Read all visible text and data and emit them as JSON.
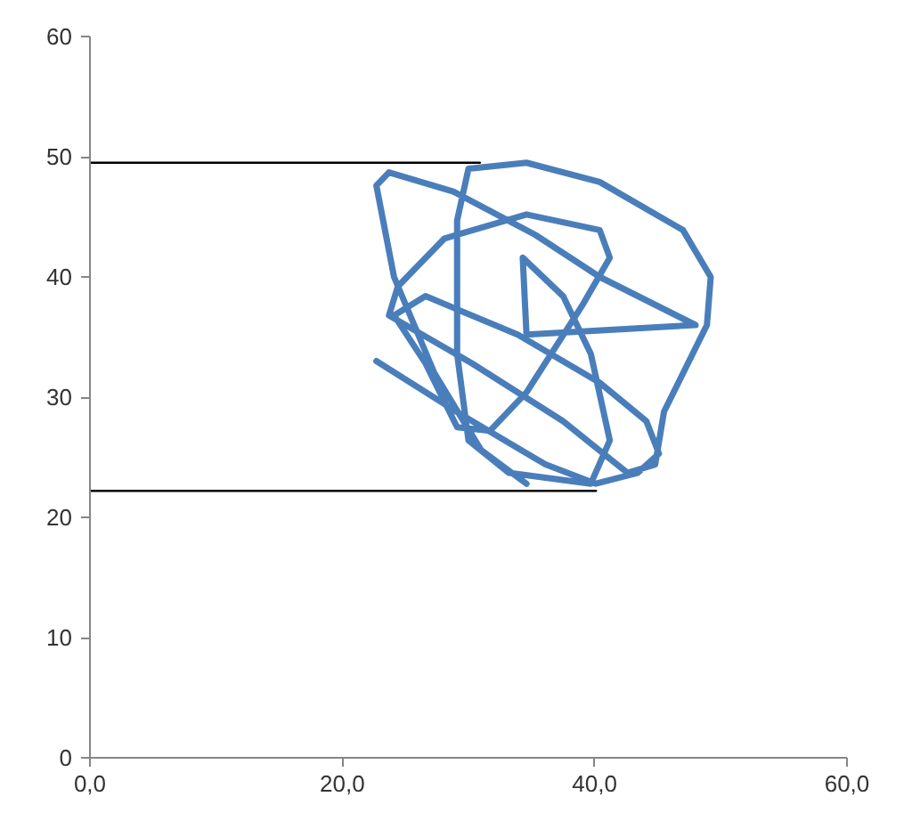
{
  "chart_data": {
    "type": "line",
    "line_style": "solid",
    "grid": false,
    "xlim": [
      0,
      60
    ],
    "ylim": [
      0,
      60
    ],
    "xticks": [
      {
        "value": 0,
        "label": "0,0"
      },
      {
        "value": 20,
        "label": "20,0"
      },
      {
        "value": 40,
        "label": "40,0"
      },
      {
        "value": 60,
        "label": "60,0"
      }
    ],
    "yticks": [
      0,
      10,
      20,
      30,
      40,
      50,
      60
    ],
    "series": [
      {
        "color": "#4a7ebb",
        "x": [
          22.7,
          29.5,
          36.1,
          40.1,
          43.4,
          45.1,
          44.1,
          40.4,
          33.9,
          26.6,
          24.1,
          26.6,
          29.1,
          31.7,
          34.6,
          39.0,
          41.2,
          40.4,
          34.6,
          28.1,
          24.4,
          23.7,
          30.3,
          37.5,
          42.6,
          44.8,
          45.5,
          48.9,
          49.2,
          47.0,
          40.4,
          34.6,
          30.0,
          29.1,
          29.1,
          30.0,
          33.2,
          39.7,
          41.2,
          39.7,
          37.5,
          34.3,
          34.6,
          48.0,
          40.4,
          35.3,
          28.8,
          23.7,
          22.7,
          24.1,
          27.3,
          31.0,
          34.6
        ],
        "values": [
          33.0,
          28.5,
          24.4,
          22.8,
          23.7,
          25.3,
          28.0,
          31.2,
          35.2,
          38.4,
          36.8,
          32.8,
          27.5,
          27.2,
          30.4,
          37.6,
          41.6,
          43.9,
          45.2,
          43.2,
          39.2,
          36.8,
          32.8,
          28.0,
          23.7,
          24.4,
          28.8,
          36.0,
          40.0,
          43.9,
          47.9,
          49.5,
          49.0,
          44.7,
          33.6,
          26.4,
          23.7,
          22.8,
          26.4,
          33.6,
          38.4,
          41.6,
          35.2,
          36.0,
          40.0,
          43.5,
          47.1,
          48.7,
          47.6,
          40.0,
          32.0,
          25.6,
          22.8
        ]
      },
      {
        "color": "#000000",
        "x": [
          0,
          30.9
        ],
        "values": [
          49.5,
          49.5
        ]
      },
      {
        "color": "#000000",
        "x": [
          0,
          40.1
        ],
        "values": [
          22.2,
          22.2
        ]
      }
    ]
  }
}
